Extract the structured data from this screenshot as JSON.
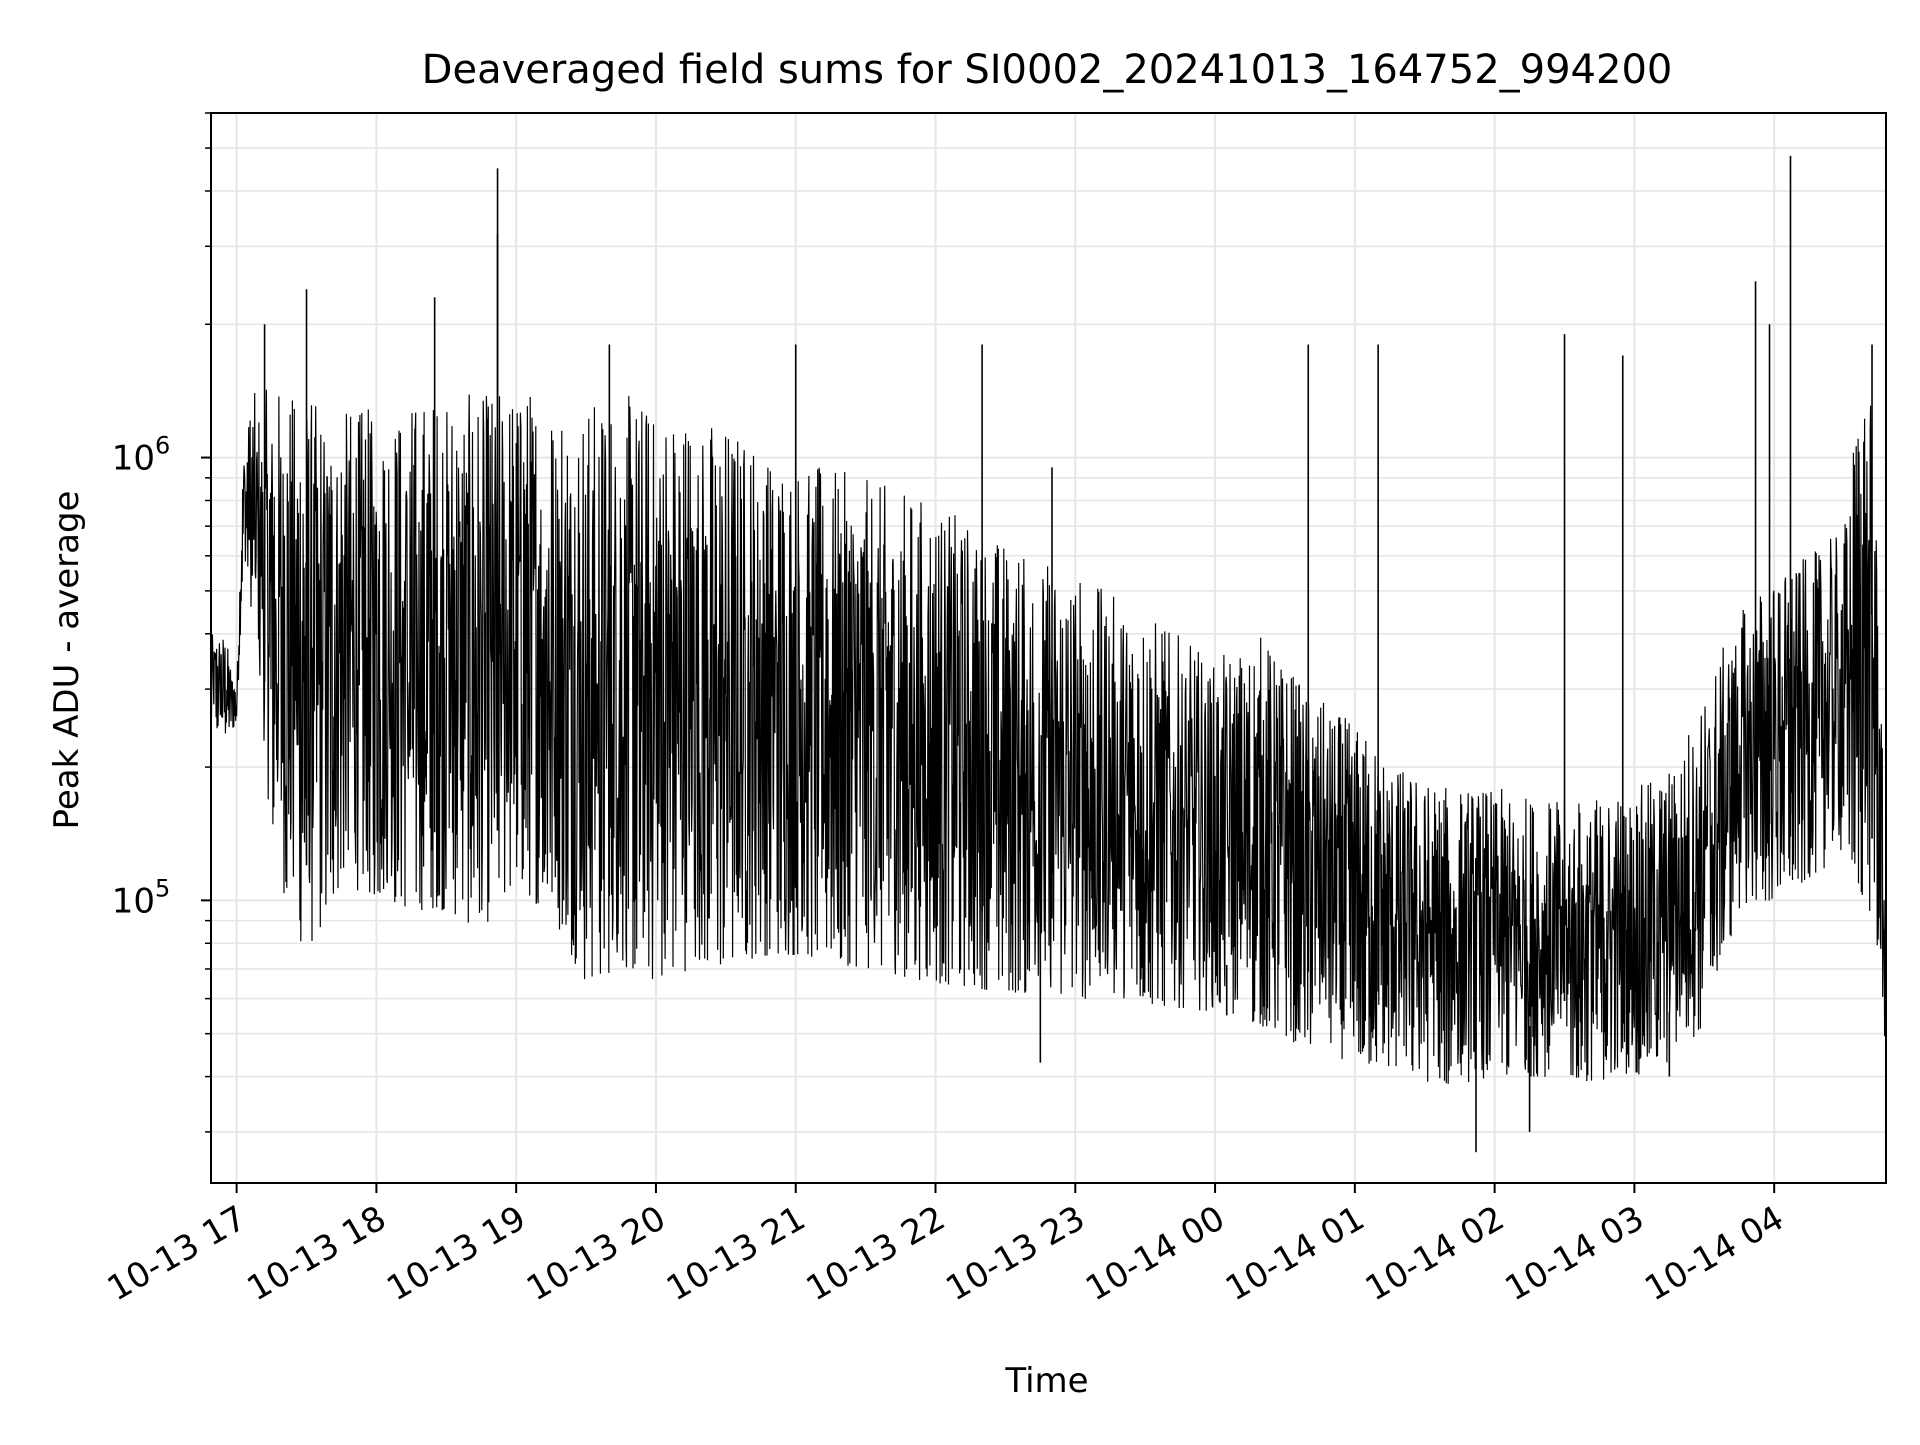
{
  "chart_data": {
    "type": "line",
    "title": "Deaveraged field sums for SI0002_20241013_164752_994200",
    "xlabel": "Time",
    "ylabel": "Peak ADU - average",
    "y_scale": "log",
    "ylim": [
      23000,
      6000000
    ],
    "xlim": [
      "2024-10-13 16:49",
      "2024-10-14 04:48"
    ],
    "x_ticks": [
      "10-13 17",
      "10-13 18",
      "10-13 19",
      "10-13 20",
      "10-13 21",
      "10-13 22",
      "10-13 23",
      "10-14 00",
      "10-14 01",
      "10-14 02",
      "10-14 03",
      "10-14 04"
    ],
    "y_ticks": [
      {
        "value": 100000,
        "base": "10",
        "exp": "5"
      },
      {
        "value": 1000000,
        "base": "10",
        "exp": "6"
      }
    ],
    "grid": true,
    "line_color": "#000000",
    "grid_color": "#e6e6e6",
    "series": [
      {
        "x": [
          "2024-10-13 16:49",
          "2024-10-13 16:55",
          "2024-10-13 17:00",
          "2024-10-13 17:03",
          "2024-10-13 17:07",
          "2024-10-13 17:15",
          "2024-10-13 17:25",
          "2024-10-13 17:35",
          "2024-10-13 17:45",
          "2024-10-13 18:00",
          "2024-10-13 18:15",
          "2024-10-13 18:30",
          "2024-10-13 18:45",
          "2024-10-13 19:00",
          "2024-10-13 19:15",
          "2024-10-13 19:30",
          "2024-10-13 19:45",
          "2024-10-13 20:00",
          "2024-10-13 20:15",
          "2024-10-13 20:30",
          "2024-10-13 20:45",
          "2024-10-13 21:00",
          "2024-10-13 21:30",
          "2024-10-13 22:00",
          "2024-10-13 22:30",
          "2024-10-13 23:00",
          "2024-10-13 23:30",
          "2024-10-14 00:00",
          "2024-10-14 00:20",
          "2024-10-14 00:40",
          "2024-10-14 01:00",
          "2024-10-14 01:20",
          "2024-10-14 01:40",
          "2024-10-14 02:00",
          "2024-10-14 02:20",
          "2024-10-14 02:40",
          "2024-10-14 03:00",
          "2024-10-14 03:15",
          "2024-10-14 03:30",
          "2024-10-14 03:45",
          "2024-10-14 04:00",
          "2024-10-14 04:15",
          "2024-10-14 04:30",
          "2024-10-14 04:38",
          "2024-10-14 04:43",
          "2024-10-14 04:48"
        ],
        "y_low": [
          240000,
          230000,
          250000,
          600000,
          400000,
          140000,
          80000,
          80000,
          110000,
          100000,
          95000,
          95000,
          85000,
          110000,
          90000,
          65000,
          70000,
          65000,
          70000,
          70000,
          75000,
          75000,
          70000,
          65000,
          62000,
          60000,
          58000,
          56000,
          52000,
          46000,
          43000,
          40000,
          38000,
          40000,
          40000,
          39000,
          40000,
          43000,
          52000,
          95000,
          100000,
          110000,
          130000,
          100000,
          90000,
          45000
        ],
        "y_high": [
          400000,
          400000,
          300000,
          1100000,
          1400000,
          1450000,
          1450000,
          1350000,
          1300000,
          1300000,
          1350000,
          1400000,
          1400000,
          1450000,
          1450000,
          1350000,
          1400000,
          1350000,
          1300000,
          1200000,
          1100000,
          1000000,
          900000,
          800000,
          650000,
          550000,
          450000,
          350000,
          400000,
          300000,
          250000,
          200000,
          180000,
          180000,
          170000,
          170000,
          180000,
          200000,
          300000,
          450000,
          550000,
          600000,
          700000,
          1700000,
          1200000,
          100000
        ],
        "spikes": [
          {
            "x": "2024-10-13 17:12",
            "y": 2000000
          },
          {
            "x": "2024-10-13 17:30",
            "y": 2400000
          },
          {
            "x": "2024-10-13 18:25",
            "y": 2300000
          },
          {
            "x": "2024-10-13 18:52",
            "y": 4500000
          },
          {
            "x": "2024-10-13 18:52",
            "y": 3200000
          },
          {
            "x": "2024-10-13 19:40",
            "y": 1800000
          },
          {
            "x": "2024-10-13 21:00",
            "y": 1800000
          },
          {
            "x": "2024-10-13 22:20",
            "y": 1800000
          },
          {
            "x": "2024-10-13 22:50",
            "y": 950000
          },
          {
            "x": "2024-10-14 00:40",
            "y": 1800000
          },
          {
            "x": "2024-10-14 01:10",
            "y": 1800000
          },
          {
            "x": "2024-10-14 02:30",
            "y": 1900000
          },
          {
            "x": "2024-10-14 02:55",
            "y": 1700000
          },
          {
            "x": "2024-10-14 03:52",
            "y": 2500000
          },
          {
            "x": "2024-10-14 04:07",
            "y": 4800000
          },
          {
            "x": "2024-10-14 03:58",
            "y": 2000000
          },
          {
            "x": "2024-10-14 04:42",
            "y": 1800000
          }
        ],
        "dips": [
          {
            "x": "2024-10-13 22:45",
            "y": 43000
          },
          {
            "x": "2024-10-14 00:05",
            "y": 55000
          },
          {
            "x": "2024-10-14 01:52",
            "y": 27000
          },
          {
            "x": "2024-10-14 02:15",
            "y": 30000
          },
          {
            "x": "2024-10-14 03:15",
            "y": 40000
          }
        ]
      }
    ]
  }
}
